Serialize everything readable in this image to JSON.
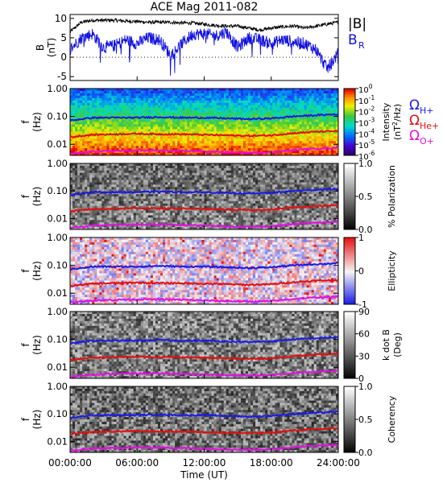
{
  "title": "ACE Mag 2011-082",
  "colors": {
    "bmag": "#000000",
    "br": "#1010e0",
    "h_plus": "#1a1ae6",
    "he_plus": "#e01010",
    "o_plus": "#e010e0"
  },
  "time_axis": {
    "label": "Time (UT)",
    "ticks": [
      "00:00:00",
      "06:00:00",
      "12:00:00",
      "18:00:00",
      "24:00:00"
    ],
    "range_hours": [
      0,
      24
    ]
  },
  "panel_b": {
    "ylabel": "B",
    "yunit": "(nT)",
    "ticks": [
      "10",
      "5",
      "0",
      "-5"
    ],
    "legend_bmag": "|B|",
    "legend_br_main": "B",
    "legend_br_sub": "R"
  },
  "freq_axis": {
    "ylabel": "f",
    "yunit": "(Hz)",
    "ticks": [
      "1.00",
      "0.10",
      "0.01"
    ]
  },
  "spectra": [
    {
      "name": "intensity",
      "colorbar_title": "Intensity",
      "colorbar_unit_main": "(nT",
      "colorbar_unit_sup": "2",
      "colorbar_unit_end": "/Hz)",
      "cb_ticks": [
        "0",
        "-1",
        "-2",
        "-3",
        "-4",
        "-5",
        "-6"
      ]
    },
    {
      "name": "polarization",
      "colorbar_title": "% Polarization",
      "cb_ticks": [
        "1.0",
        "0.5",
        "0.0"
      ]
    },
    {
      "name": "ellipticity",
      "colorbar_title": "Ellipticity",
      "cb_ticks": [
        "1",
        "0",
        "-1"
      ]
    },
    {
      "name": "kdotb",
      "colorbar_title": "k dot B",
      "colorbar_unit": "(Deg)",
      "cb_ticks": [
        "90",
        "60",
        "30",
        "0"
      ]
    },
    {
      "name": "coherency",
      "colorbar_title": "Coherency",
      "cb_ticks": [
        "1.0",
        "0.5",
        "0.0"
      ]
    }
  ],
  "gyro_legend": {
    "omega": "Ω",
    "h_plus": "H+",
    "he_plus": "He+",
    "o_plus": "O+"
  },
  "chart_data": [
    {
      "type": "line",
      "title": "ACE Mag 2011-082",
      "ylabel": "B (nT)",
      "xlabel": "Time (UT)",
      "ylim": [
        -6,
        11
      ],
      "x": [
        0,
        1,
        2,
        3,
        4,
        5,
        6,
        7,
        8,
        9,
        10,
        11,
        12,
        13,
        14,
        15,
        16,
        17,
        18,
        19,
        20,
        21,
        22,
        23,
        24
      ],
      "series": [
        {
          "name": "|B|",
          "values": [
            6.5,
            9.0,
            9.5,
            9.5,
            9.5,
            9.3,
            9.2,
            9.0,
            9.0,
            9.0,
            8.8,
            8.8,
            8.5,
            8.2,
            8.0,
            8.0,
            7.5,
            7.0,
            7.5,
            7.8,
            8.0,
            7.5,
            8.0,
            8.5,
            9.0
          ]
        },
        {
          "name": "B",
          "values": [
            2.0,
            5.0,
            6.0,
            2.5,
            3.0,
            4.5,
            3.5,
            5.0,
            4.5,
            0.5,
            3.5,
            6.0,
            6.0,
            5.5,
            6.5,
            2.5,
            5.0,
            4.5,
            3.5,
            4.5,
            4.0,
            3.5,
            2.0,
            -3.0,
            1.0
          ]
        }
      ]
    },
    {
      "type": "heatmap",
      "title": "Intensity",
      "xlabel": "Time (UT)",
      "ylabel": "f (Hz)",
      "yscale": "log",
      "ylim": [
        0.004,
        1.0
      ],
      "series": [
        {
          "name": "H+",
          "x": [
            0,
            2,
            4,
            6,
            8,
            10,
            12,
            14,
            16,
            18,
            20,
            22,
            24
          ],
          "values": [
            0.07,
            0.09,
            0.09,
            0.09,
            0.095,
            0.09,
            0.09,
            0.085,
            0.08,
            0.085,
            0.1,
            0.11,
            0.12
          ]
        },
        {
          "name": "He+",
          "x": [
            0,
            2,
            4,
            6,
            8,
            10,
            12,
            14,
            16,
            18,
            20,
            22,
            24
          ],
          "values": [
            0.018,
            0.022,
            0.023,
            0.024,
            0.023,
            0.023,
            0.022,
            0.021,
            0.02,
            0.021,
            0.025,
            0.028,
            0.03
          ]
        },
        {
          "name": "O+",
          "x": [
            0,
            2,
            4,
            6,
            8,
            10,
            12,
            14,
            16,
            18,
            20,
            22,
            24
          ],
          "values": [
            0.0045,
            0.0055,
            0.0058,
            0.006,
            0.006,
            0.0058,
            0.0055,
            0.0052,
            0.005,
            0.0052,
            0.0062,
            0.007,
            0.0075
          ]
        }
      ]
    }
  ]
}
